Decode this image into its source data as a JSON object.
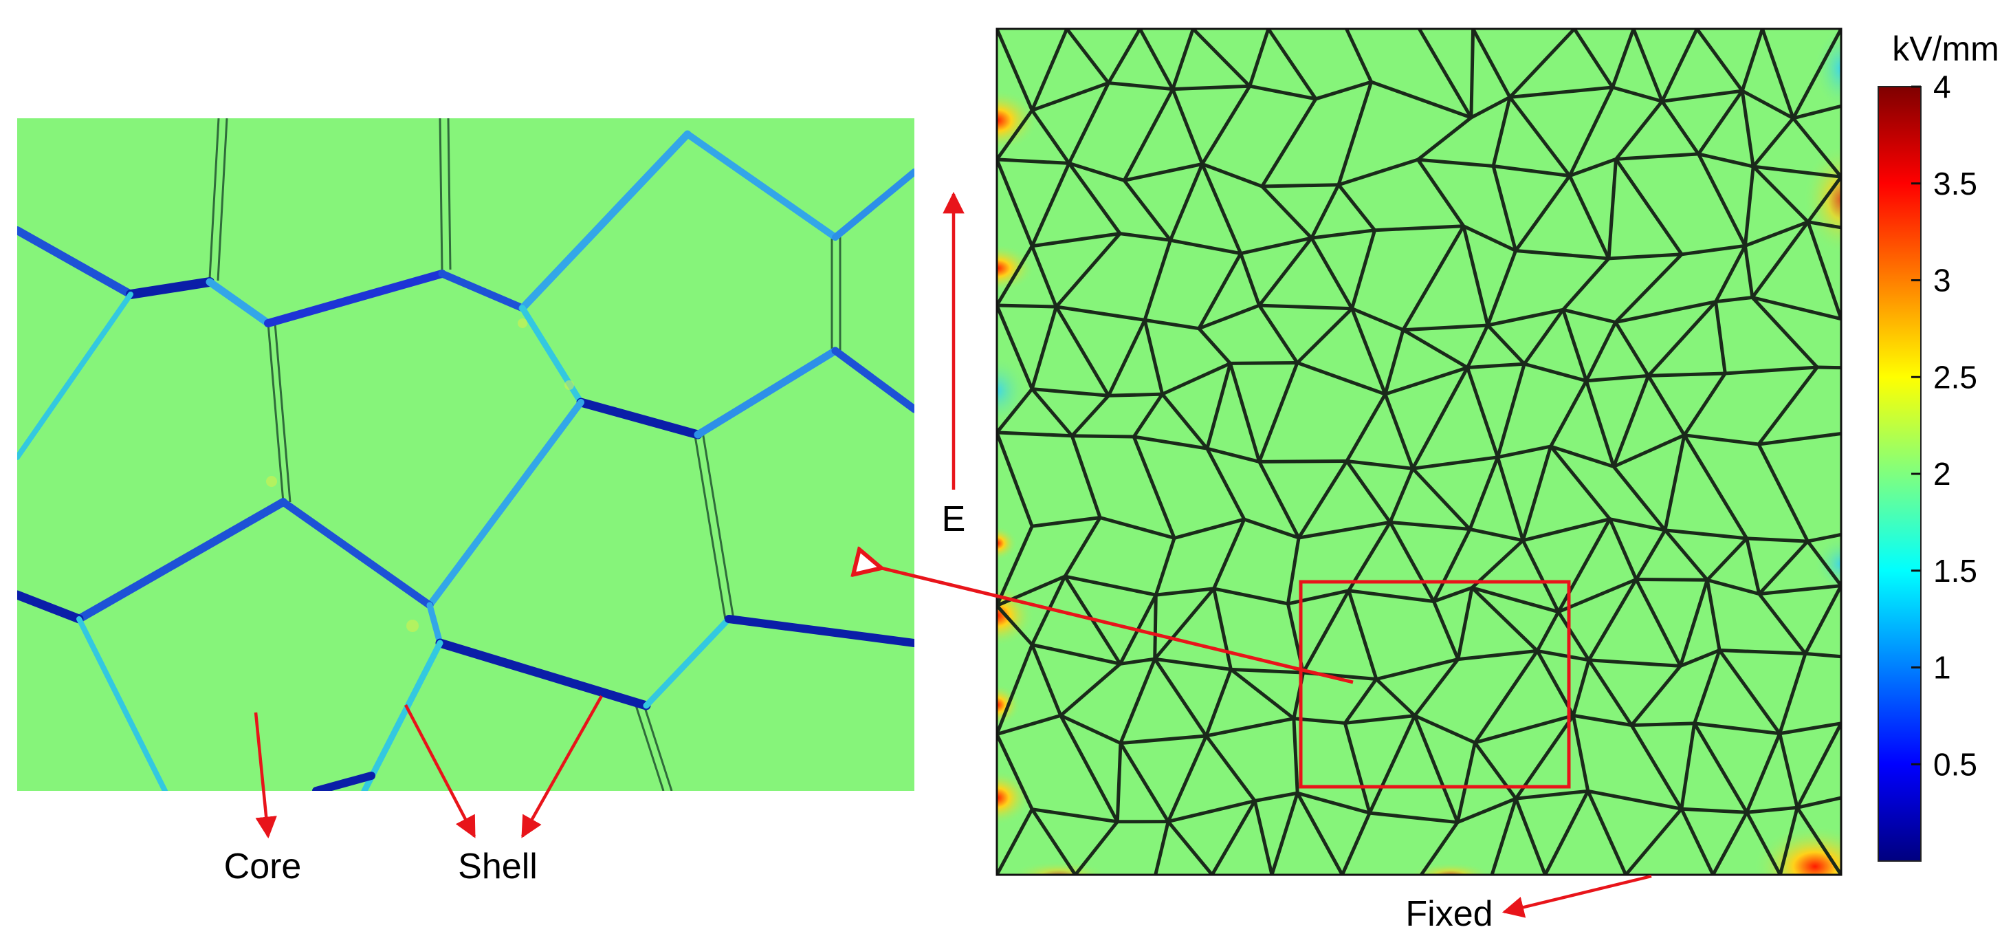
{
  "labels": {
    "core": "Core",
    "shell": "Shell",
    "field": "E",
    "fixed": "Fixed"
  },
  "colorbar": {
    "unit": "kV/mm",
    "ticks": [
      "4",
      "3.5",
      "3",
      "2.5",
      "2",
      "1.5",
      "1",
      "0.5"
    ],
    "tick_values": [
      4,
      3.5,
      3,
      2.5,
      2,
      1.5,
      1,
      0.5
    ],
    "range": [
      0,
      4
    ],
    "colormap": [
      "#00007f",
      "#0000ff",
      "#007fff",
      "#00ffff",
      "#7fff7f",
      "#ffff00",
      "#ff7f00",
      "#ff0000",
      "#7f0000"
    ]
  },
  "colors": {
    "grain_core": "#86f47a",
    "grain_boundary": "#1a2a1a",
    "shell_low": "#1d34d6",
    "shell_mid": "#33a6e8",
    "annotation": "#e8141a",
    "edge_hot": "#ffd21a"
  }
}
